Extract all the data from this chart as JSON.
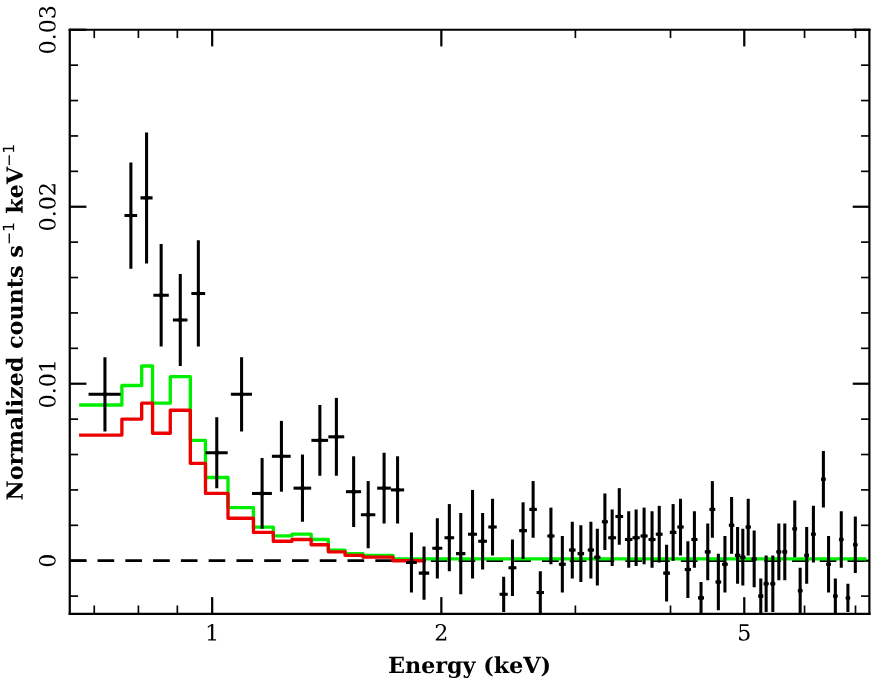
{
  "chart_data": {
    "type": "scatter",
    "xlabel": "Energy (keV)",
    "ylabel": "Normalized counts s$^{−1}$ keV$^{−1}$",
    "log": "x",
    "xlim": [
      0.65,
      7.3
    ],
    "ylim": [
      -0.003,
      0.03
    ],
    "xticks": [
      1,
      2,
      5
    ],
    "yticks": [
      0,
      0.01,
      0.02,
      0.03
    ],
    "grid": false,
    "legend": false,
    "ref_lines": [
      {
        "axis": "y",
        "value": 0,
        "color": "#000000",
        "line_style": "dashed"
      }
    ],
    "series": [
      {
        "color": "#000000",
        "x": [
          0.723,
          0.782,
          0.82,
          0.857,
          0.908,
          0.959,
          1.014,
          1.093,
          1.163,
          1.233,
          1.314,
          1.385,
          1.456,
          1.534,
          1.603,
          1.682,
          1.752,
          1.827,
          1.898,
          1.976,
          2.049,
          2.121,
          2.198,
          2.266,
          2.335,
          2.415,
          2.48,
          2.561,
          2.64,
          2.698,
          2.786,
          2.884,
          2.972,
          3.05,
          3.144,
          3.206,
          3.28,
          3.353,
          3.426,
          3.525,
          3.605,
          3.693,
          3.783,
          3.866,
          3.953,
          4.032,
          4.123,
          4.216,
          4.3,
          4.387,
          4.477,
          4.54,
          4.623,
          4.716,
          4.812,
          4.9,
          4.978,
          5.06,
          5.152,
          5.256,
          5.342,
          5.451,
          5.551,
          5.652,
          5.825,
          5.921,
          6.039,
          6.163,
          6.352,
          6.452,
          6.586,
          6.705,
          6.841,
          6.996
        ],
        "values": [
          0.0094,
          0.0195,
          0.0205,
          0.015,
          0.0136,
          0.0151,
          0.0061,
          0.0094,
          0.0038,
          0.0059,
          0.0041,
          0.0068,
          0.007,
          0.0039,
          0.0026,
          0.0041,
          0.004,
          -0.0001,
          -0.0007,
          0.0007,
          0.0013,
          0.0004,
          0.0015,
          0.0011,
          0.0019,
          -0.0019,
          -0.0004,
          0.0017,
          0.0029,
          -0.0018,
          0.0014,
          -0.0002,
          0.0006,
          0.0004,
          0.0006,
          0.0002,
          0.0022,
          0.0013,
          0.0025,
          0.0012,
          0.0013,
          0.0014,
          0.0012,
          0.0015,
          -0.0007,
          0.0016,
          0.0019,
          -0.0005,
          0.0012,
          -0.0021,
          0.0005,
          0.0029,
          -0.0012,
          -0.0002,
          0.002,
          0.0003,
          0.0002,
          0.0019,
          0.0001,
          -0.002,
          -0.0013,
          -0.0013,
          0.0005,
          0.0005,
          0.0018,
          -0.0017,
          0.0003,
          0.0015,
          0.0046,
          -0.0002,
          -0.002,
          0.0012,
          -0.0021,
          0.0009
        ],
        "errors": [
          0.0021,
          0.003,
          0.0037,
          0.0029,
          0.0026,
          0.003,
          0.002,
          0.0021,
          0.002,
          0.002,
          0.0019,
          0.002,
          0.0022,
          0.002,
          0.0019,
          0.002,
          0.0019,
          0.0017,
          0.0015,
          0.0017,
          0.0019,
          0.0023,
          0.0025,
          0.0016,
          0.0016,
          0.001,
          0.0016,
          0.0016,
          0.0016,
          0.0012,
          0.0016,
          0.0016,
          0.0016,
          0.0016,
          0.0016,
          0.0016,
          0.0016,
          0.0016,
          0.0016,
          0.0016,
          0.0016,
          0.0016,
          0.0016,
          0.0016,
          0.0016,
          0.0016,
          0.0016,
          0.0016,
          0.0016,
          0.0009,
          0.0016,
          0.0016,
          0.0016,
          0.0016,
          0.0016,
          0.0016,
          0.0016,
          0.0016,
          0.0016,
          0.001,
          0.0016,
          0.0016,
          0.0016,
          0.0016,
          0.0016,
          0.0013,
          0.0016,
          0.0016,
          0.0016,
          0.0016,
          0.001,
          0.0016,
          0.0008,
          0.0016
        ],
        "xerrors": [
          0.035,
          0.015,
          0.015,
          0.02,
          0.02,
          0.02,
          0.034,
          0.035,
          0.035,
          0.035,
          0.035,
          0.035,
          0.035,
          0.035,
          0.035,
          0.035,
          0.035,
          0.03,
          0.03,
          0.03,
          0.03,
          0.03,
          0.03,
          0.03,
          0.03,
          0.03,
          0.03,
          0.03,
          0.03,
          0.03,
          0.03,
          0.03,
          0.03,
          0.03,
          0.03,
          0.03,
          0.03,
          0.04,
          0.04,
          0.04,
          0.04,
          0.04,
          0.04,
          0.04,
          0.04,
          0.04,
          0.04,
          0.04,
          0.04,
          0.04,
          0.04,
          0.04,
          0.04,
          0.04,
          0.04,
          0.04,
          0.04,
          0.04,
          0.04,
          0.04,
          0.04,
          0.04,
          0.04,
          0.04,
          0.04,
          0.04,
          0.04,
          0.04,
          0.04,
          0.04,
          0.04,
          0.04,
          0.04,
          0.04
        ]
      },
      {
        "type": "step",
        "color": "#00ee00",
        "x": [
          0.672,
          0.761,
          0.808,
          0.835,
          0.881,
          0.936,
          0.98,
          1.049,
          1.133,
          1.203,
          1.273,
          1.349,
          1.421,
          1.495,
          1.578,
          1.728,
          7.2
        ],
        "values": [
          0.0088,
          0.0099,
          0.011,
          0.0089,
          0.0104,
          0.0068,
          0.0047,
          0.003,
          0.0019,
          0.0014,
          0.0015,
          0.0012,
          0.0006,
          0.0004,
          0.0003,
          0.0001,
          0.0001
        ]
      },
      {
        "type": "step",
        "color": "#ee0000",
        "x": [
          0.672,
          0.761,
          0.808,
          0.835,
          0.881,
          0.936,
          0.98,
          1.049,
          1.133,
          1.203,
          1.273,
          1.349,
          1.421,
          1.495,
          1.578,
          1.728,
          1.9
        ],
        "values": [
          0.0071,
          0.008,
          0.0089,
          0.0072,
          0.0085,
          0.0055,
          0.0038,
          0.0024,
          0.0016,
          0.0011,
          0.0012,
          0.0009,
          0.0005,
          0.0003,
          0.0002,
          0.0,
          0.0
        ]
      }
    ]
  }
}
